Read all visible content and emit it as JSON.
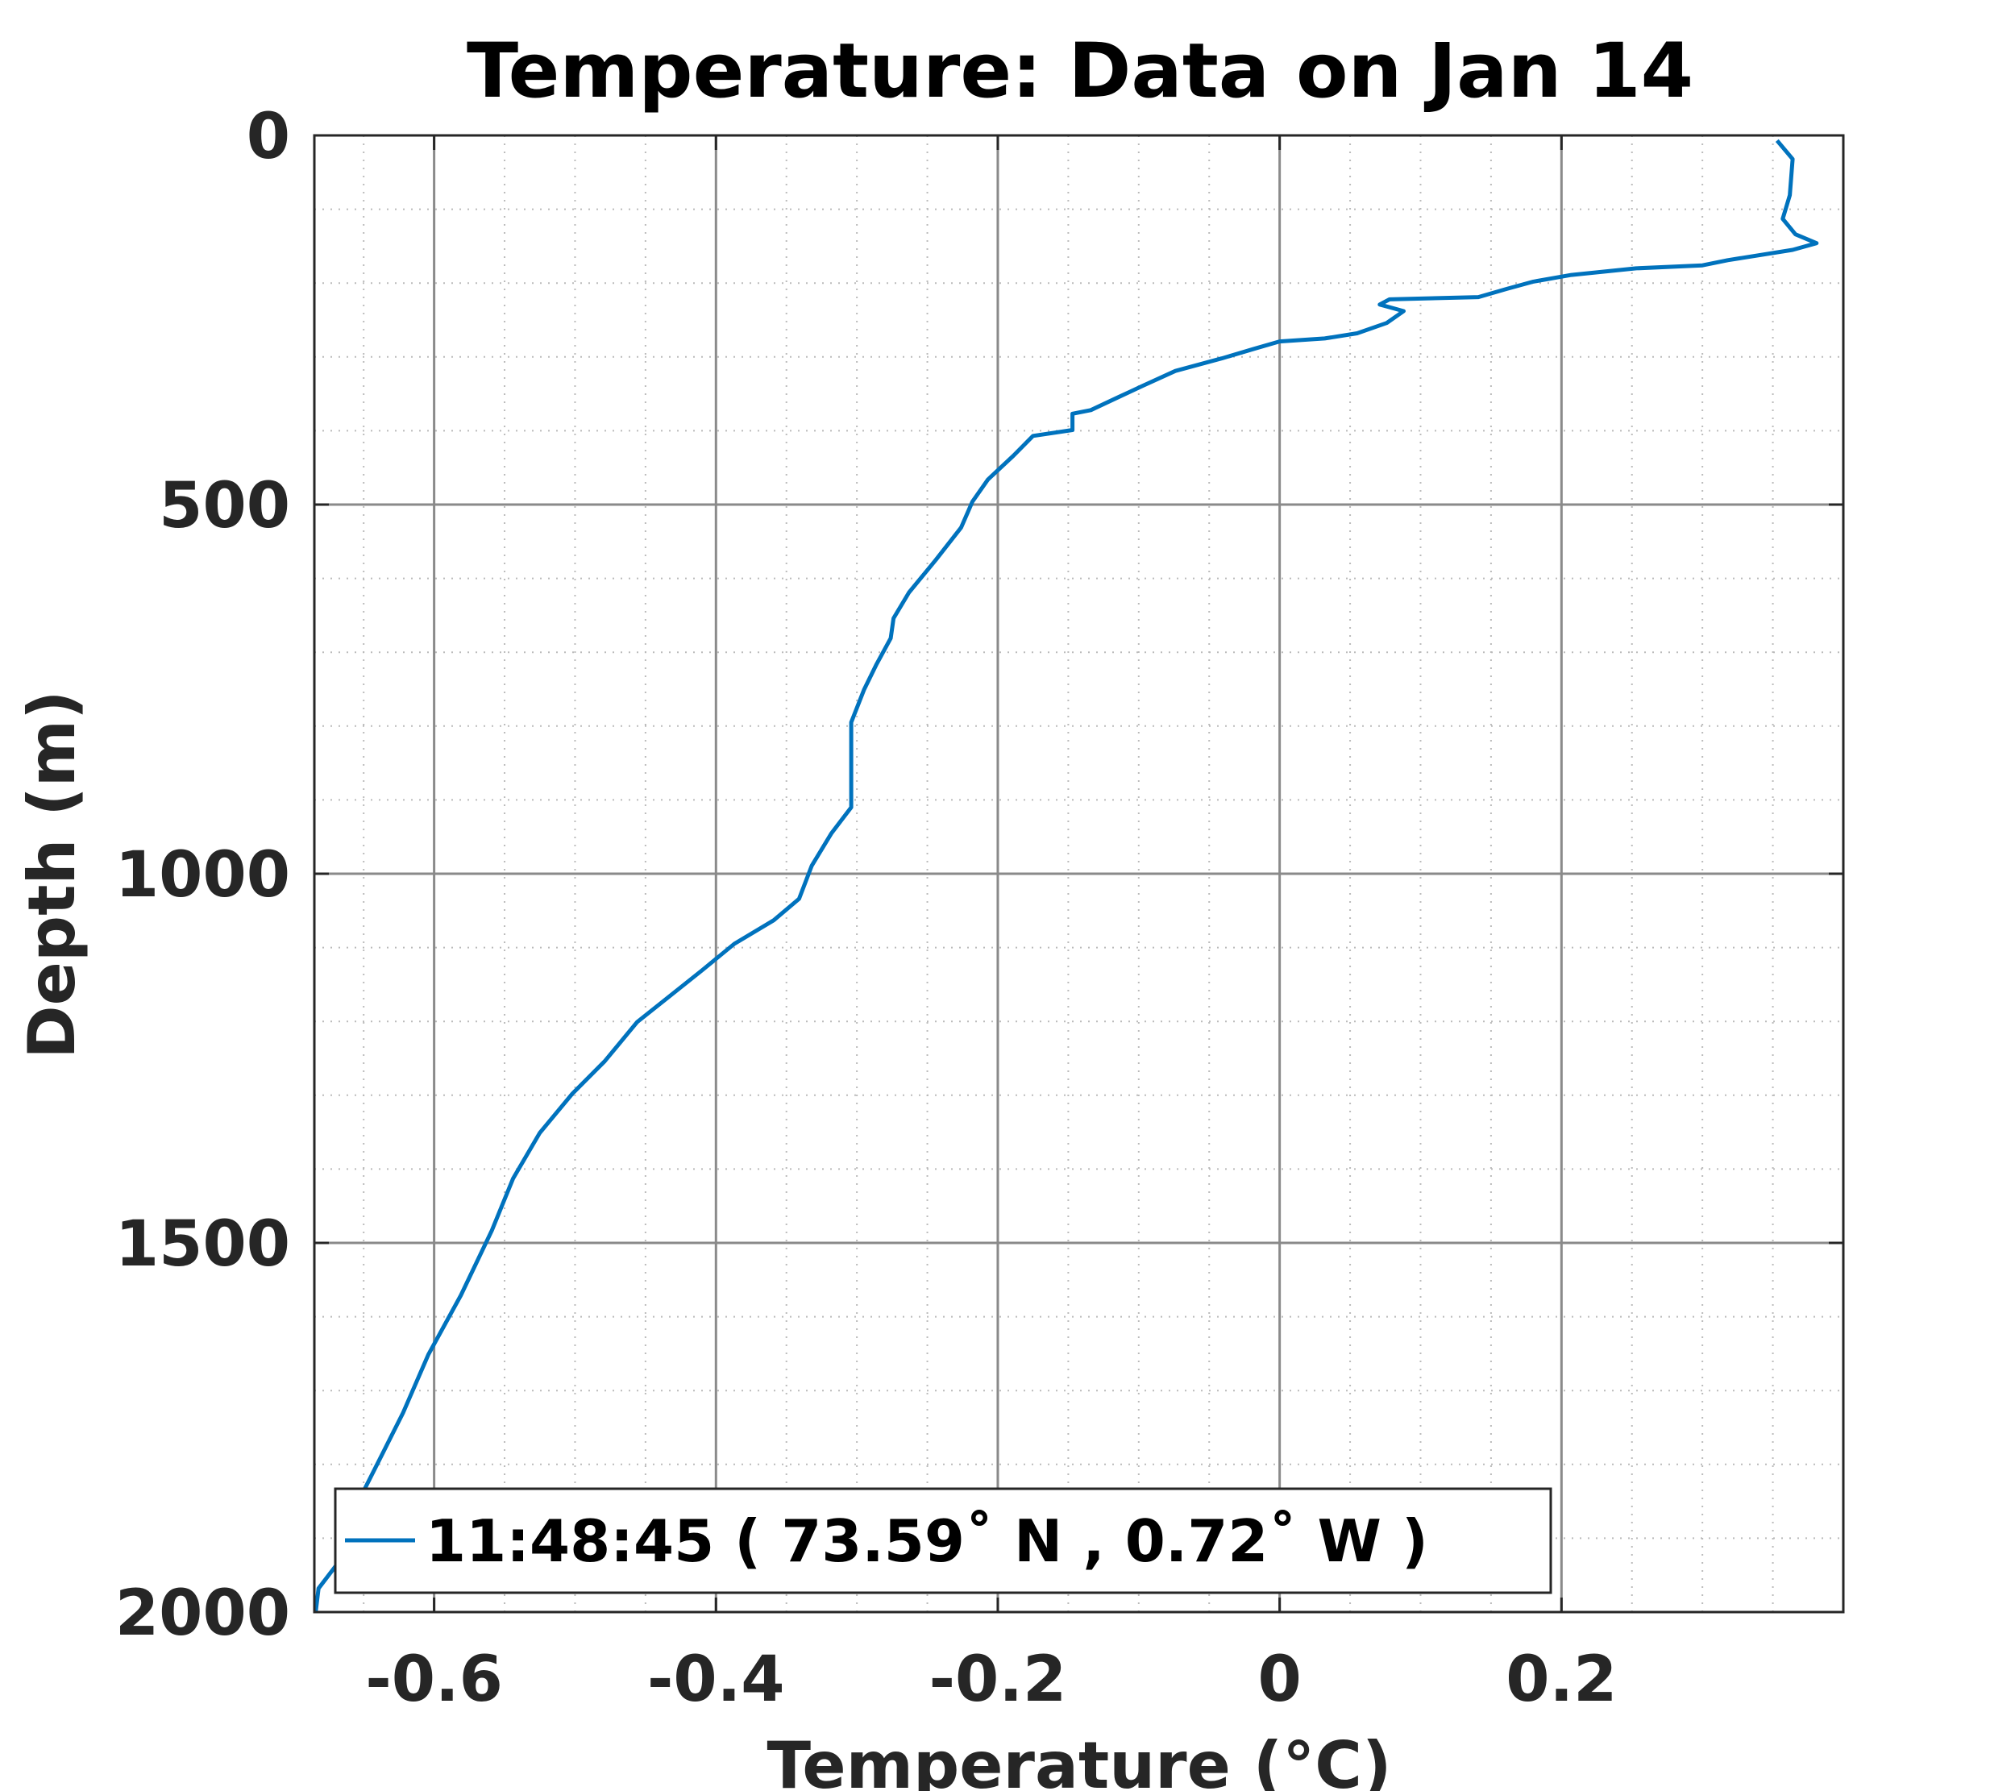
{
  "chart_data": {
    "type": "line",
    "title": "Temperature: Data on Jan 14",
    "xlabel": "Temperature (°C)",
    "ylabel": "Depth (m)",
    "xlim": [
      -0.685,
      0.4
    ],
    "ylim": [
      0,
      2000
    ],
    "y_reversed": true,
    "grid": true,
    "minor_grid": true,
    "xticks": [
      -0.6,
      -0.4,
      -0.2,
      0,
      0.2
    ],
    "xtick_labels": [
      "-0.6",
      "-0.4",
      "-0.2",
      "0",
      "0.2"
    ],
    "yticks": [
      0,
      500,
      1000,
      1500,
      2000
    ],
    "ytick_labels": [
      "0",
      "500",
      "1000",
      "1500",
      "2000"
    ],
    "legend_position": "bottom-left",
    "series": [
      {
        "name": "11:48:45 ( 73.59˚ N , 0.72˚ W )",
        "color": "#0072BD",
        "x": [
          0.353,
          0.364,
          0.362,
          0.357,
          0.366,
          0.381,
          0.364,
          0.318,
          0.3,
          0.253,
          0.207,
          0.18,
          0.161,
          0.141,
          0.078,
          0.071,
          0.088,
          0.076,
          0.055,
          0.032,
          0,
          -0.018,
          -0.041,
          -0.074,
          -0.097,
          -0.115,
          -0.134,
          -0.147,
          -0.147,
          -0.175,
          -0.189,
          -0.207,
          -0.218,
          -0.226,
          -0.244,
          -0.263,
          -0.274,
          -0.276,
          -0.286,
          -0.295,
          -0.304,
          -0.304,
          -0.318,
          -0.332,
          -0.341,
          -0.359,
          -0.387,
          -0.41,
          -0.433,
          -0.456,
          -0.479,
          -0.502,
          -0.525,
          -0.544,
          -0.559,
          -0.581,
          -0.604,
          -0.622,
          -0.636,
          -0.65,
          -0.668,
          -0.682,
          -0.684
        ],
        "y": [
          7,
          32,
          81,
          113,
          134,
          146,
          155,
          169,
          176,
          180,
          189,
          198,
          208,
          219,
          222,
          229,
          238,
          254,
          268,
          275,
          279,
          289,
          302,
          319,
          339,
          355,
          372,
          377,
          399,
          407,
          434,
          466,
          496,
          531,
          575,
          619,
          654,
          681,
          716,
          751,
          795,
          910,
          945,
          989,
          1034,
          1063,
          1095,
          1131,
          1166,
          1201,
          1254,
          1298,
          1351,
          1413,
          1483,
          1571,
          1651,
          1730,
          1783,
          1836,
          1933,
          1968,
          2000
        ]
      }
    ]
  }
}
